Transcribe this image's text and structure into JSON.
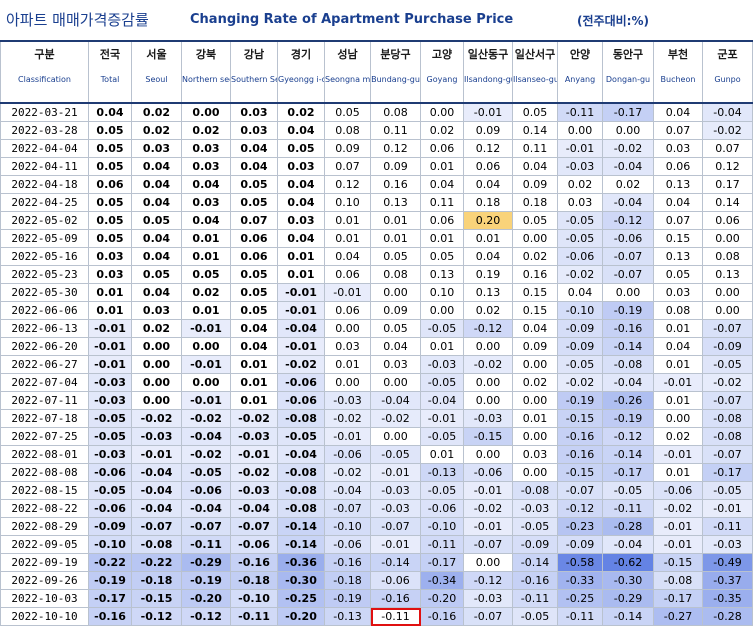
{
  "title_kr": "아파트 매매가격증감률",
  "title_en": "Changing Rate of Apartment Purchase Price",
  "unit": "(전주대비:%)",
  "columns": [
    {
      "kr": "구분",
      "en": "Classification"
    },
    {
      "kr": "전국",
      "en": "Total"
    },
    {
      "kr": "서울",
      "en": "Seoul"
    },
    {
      "kr": "강북",
      "en": "Northern seoul"
    },
    {
      "kr": "강남",
      "en": "Southern Seoul"
    },
    {
      "kr": "경기",
      "en": "Gyeongg i-do"
    },
    {
      "kr": "성남",
      "en": "Seongna m"
    },
    {
      "kr": "분당구",
      "en": "Bundang-gu"
    },
    {
      "kr": "고양",
      "en": "Goyang"
    },
    {
      "kr": "일산동구",
      "en": "Ilsandong-gu"
    },
    {
      "kr": "일산서구",
      "en": "Ilsanseo-gu"
    },
    {
      "kr": "안양",
      "en": "Anyang"
    },
    {
      "kr": "동안구",
      "en": "Dongan-gu"
    },
    {
      "kr": "부천",
      "en": "Bucheon"
    },
    {
      "kr": "군포",
      "en": "Gunpo"
    }
  ],
  "rows": [
    {
      "date": "2022-03-21",
      "v": [
        "0.04",
        "0.02",
        "0.00",
        "0.03",
        "0.02",
        "0.05",
        "0.08",
        "0.00",
        "-0.01",
        "0.05",
        "-0.11",
        "-0.17",
        "0.04",
        "-0.04"
      ]
    },
    {
      "date": "2022-03-28",
      "v": [
        "0.05",
        "0.02",
        "0.02",
        "0.03",
        "0.04",
        "0.08",
        "0.11",
        "0.02",
        "0.09",
        "0.14",
        "0.00",
        "0.00",
        "0.07",
        "-0.02"
      ]
    },
    {
      "date": "2022-04-04",
      "v": [
        "0.05",
        "0.03",
        "0.03",
        "0.04",
        "0.05",
        "0.09",
        "0.12",
        "0.06",
        "0.12",
        "0.11",
        "-0.01",
        "-0.02",
        "0.03",
        "0.07"
      ]
    },
    {
      "date": "2022-04-11",
      "v": [
        "0.05",
        "0.04",
        "0.03",
        "0.04",
        "0.03",
        "0.07",
        "0.09",
        "0.01",
        "0.06",
        "0.04",
        "-0.03",
        "-0.04",
        "0.06",
        "0.12"
      ]
    },
    {
      "date": "2022-04-18",
      "v": [
        "0.06",
        "0.04",
        "0.04",
        "0.05",
        "0.04",
        "0.12",
        "0.16",
        "0.04",
        "0.04",
        "0.09",
        "0.02",
        "0.02",
        "0.13",
        "0.17"
      ]
    },
    {
      "date": "2022-04-25",
      "v": [
        "0.05",
        "0.04",
        "0.03",
        "0.05",
        "0.04",
        "0.10",
        "0.13",
        "0.11",
        "0.18",
        "0.18",
        "0.03",
        "-0.04",
        "0.04",
        "0.14"
      ]
    },
    {
      "date": "2022-05-02",
      "v": [
        "0.05",
        "0.05",
        "0.04",
        "0.07",
        "0.03",
        "0.01",
        "0.01",
        "0.06",
        "0.20",
        "0.05",
        "-0.05",
        "-0.12",
        "0.07",
        "0.06"
      ]
    },
    {
      "date": "2022-05-09",
      "v": [
        "0.05",
        "0.04",
        "0.01",
        "0.06",
        "0.04",
        "0.01",
        "0.01",
        "0.01",
        "0.01",
        "0.00",
        "-0.05",
        "-0.06",
        "0.15",
        "0.00"
      ]
    },
    {
      "date": "2022-05-16",
      "v": [
        "0.03",
        "0.04",
        "0.01",
        "0.06",
        "0.01",
        "0.04",
        "0.05",
        "0.05",
        "0.04",
        "0.02",
        "-0.06",
        "-0.07",
        "0.13",
        "0.08"
      ]
    },
    {
      "date": "2022-05-23",
      "v": [
        "0.03",
        "0.05",
        "0.05",
        "0.05",
        "0.01",
        "0.06",
        "0.08",
        "0.13",
        "0.19",
        "0.16",
        "-0.02",
        "-0.07",
        "0.05",
        "0.13"
      ]
    },
    {
      "date": "2022-05-30",
      "v": [
        "0.01",
        "0.04",
        "0.02",
        "0.05",
        "-0.01",
        "-0.01",
        "0.00",
        "0.10",
        "0.13",
        "0.15",
        "0.04",
        "0.00",
        "0.03",
        "0.00"
      ]
    },
    {
      "date": "2022-06-06",
      "v": [
        "0.01",
        "0.03",
        "0.01",
        "0.05",
        "-0.01",
        "0.06",
        "0.09",
        "0.00",
        "0.02",
        "0.15",
        "-0.10",
        "-0.19",
        "0.08",
        "0.00"
      ]
    },
    {
      "date": "2022-06-13",
      "v": [
        "-0.01",
        "0.02",
        "-0.01",
        "0.04",
        "-0.04",
        "0.00",
        "0.05",
        "-0.05",
        "-0.12",
        "0.04",
        "-0.09",
        "-0.16",
        "0.01",
        "-0.07"
      ]
    },
    {
      "date": "2022-06-20",
      "v": [
        "-0.01",
        "0.00",
        "0.00",
        "0.04",
        "-0.01",
        "0.03",
        "0.04",
        "0.01",
        "0.00",
        "0.09",
        "-0.09",
        "-0.14",
        "0.04",
        "-0.09"
      ]
    },
    {
      "date": "2022-06-27",
      "v": [
        "-0.01",
        "0.00",
        "-0.01",
        "0.01",
        "-0.02",
        "0.01",
        "0.03",
        "-0.03",
        "-0.02",
        "0.00",
        "-0.05",
        "-0.08",
        "0.01",
        "-0.05"
      ]
    },
    {
      "date": "2022-07-04",
      "v": [
        "-0.03",
        "0.00",
        "0.00",
        "0.01",
        "-0.06",
        "0.00",
        "0.00",
        "-0.05",
        "0.00",
        "0.02",
        "-0.02",
        "-0.04",
        "-0.01",
        "-0.02"
      ]
    },
    {
      "date": "2022-07-11",
      "v": [
        "-0.03",
        "0.00",
        "-0.01",
        "0.01",
        "-0.06",
        "-0.03",
        "-0.04",
        "-0.04",
        "0.00",
        "0.00",
        "-0.19",
        "-0.26",
        "0.01",
        "-0.07"
      ]
    },
    {
      "date": "2022-07-18",
      "v": [
        "-0.05",
        "-0.02",
        "-0.02",
        "-0.02",
        "-0.08",
        "-0.02",
        "-0.02",
        "-0.01",
        "-0.03",
        "0.01",
        "-0.15",
        "-0.19",
        "0.00",
        "-0.08"
      ]
    },
    {
      "date": "2022-07-25",
      "v": [
        "-0.05",
        "-0.03",
        "-0.04",
        "-0.03",
        "-0.05",
        "-0.01",
        "0.00",
        "-0.05",
        "-0.15",
        "0.00",
        "-0.16",
        "-0.12",
        "0.02",
        "-0.08"
      ]
    },
    {
      "date": "2022-08-01",
      "v": [
        "-0.03",
        "-0.01",
        "-0.02",
        "-0.01",
        "-0.04",
        "-0.06",
        "-0.05",
        "0.01",
        "0.00",
        "0.03",
        "-0.16",
        "-0.14",
        "-0.01",
        "-0.07"
      ]
    },
    {
      "date": "2022-08-08",
      "v": [
        "-0.06",
        "-0.04",
        "-0.05",
        "-0.02",
        "-0.08",
        "-0.02",
        "-0.01",
        "-0.13",
        "-0.06",
        "0.00",
        "-0.15",
        "-0.17",
        "0.01",
        "-0.17"
      ]
    },
    {
      "date": "2022-08-15",
      "v": [
        "-0.05",
        "-0.04",
        "-0.06",
        "-0.03",
        "-0.08",
        "-0.04",
        "-0.03",
        "-0.05",
        "-0.01",
        "-0.08",
        "-0.07",
        "-0.05",
        "-0.06",
        "-0.05"
      ]
    },
    {
      "date": "2022-08-22",
      "v": [
        "-0.06",
        "-0.04",
        "-0.04",
        "-0.04",
        "-0.08",
        "-0.07",
        "-0.03",
        "-0.06",
        "-0.02",
        "-0.03",
        "-0.12",
        "-0.11",
        "-0.02",
        "-0.01"
      ]
    },
    {
      "date": "2022-08-29",
      "v": [
        "-0.09",
        "-0.07",
        "-0.07",
        "-0.07",
        "-0.14",
        "-0.10",
        "-0.07",
        "-0.10",
        "-0.01",
        "-0.05",
        "-0.23",
        "-0.28",
        "-0.01",
        "-0.11"
      ]
    },
    {
      "date": "2022-09-05",
      "v": [
        "-0.10",
        "-0.08",
        "-0.11",
        "-0.06",
        "-0.14",
        "-0.06",
        "-0.01",
        "-0.11",
        "-0.07",
        "-0.09",
        "-0.09",
        "-0.04",
        "-0.01",
        "-0.03"
      ]
    },
    {
      "date": "2022-09-19",
      "v": [
        "-0.22",
        "-0.22",
        "-0.29",
        "-0.16",
        "-0.36",
        "-0.16",
        "-0.14",
        "-0.17",
        "0.00",
        "-0.14",
        "-0.58",
        "-0.62",
        "-0.15",
        "-0.49"
      ]
    },
    {
      "date": "2022-09-26",
      "v": [
        "-0.19",
        "-0.18",
        "-0.19",
        "-0.18",
        "-0.30",
        "-0.18",
        "-0.06",
        "-0.34",
        "-0.12",
        "-0.16",
        "-0.33",
        "-0.30",
        "-0.08",
        "-0.37"
      ]
    },
    {
      "date": "2022-10-03",
      "v": [
        "-0.17",
        "-0.15",
        "-0.20",
        "-0.10",
        "-0.25",
        "-0.19",
        "-0.16",
        "-0.20",
        "-0.03",
        "-0.11",
        "-0.25",
        "-0.29",
        "-0.17",
        "-0.35"
      ]
    },
    {
      "date": "2022-10-10",
      "v": [
        "-0.16",
        "-0.12",
        "-0.12",
        "-0.11",
        "-0.20",
        "-0.13",
        "-0.11",
        "-0.16",
        "-0.07",
        "-0.05",
        "-0.11",
        "-0.14",
        "-0.27",
        "-0.28"
      ]
    }
  ],
  "highlight_yellow": {
    "row_date": "2022-05-02",
    "column_kr": "일산동구"
  },
  "highlight_red_box": {
    "row_date": "2022-10-10",
    "column_kr": "분당구"
  },
  "colors": {
    "title": "#1a3f8f",
    "yellow": "#f9d37a",
    "red_box": "#e01010",
    "border_dark": "#1f3b73"
  }
}
